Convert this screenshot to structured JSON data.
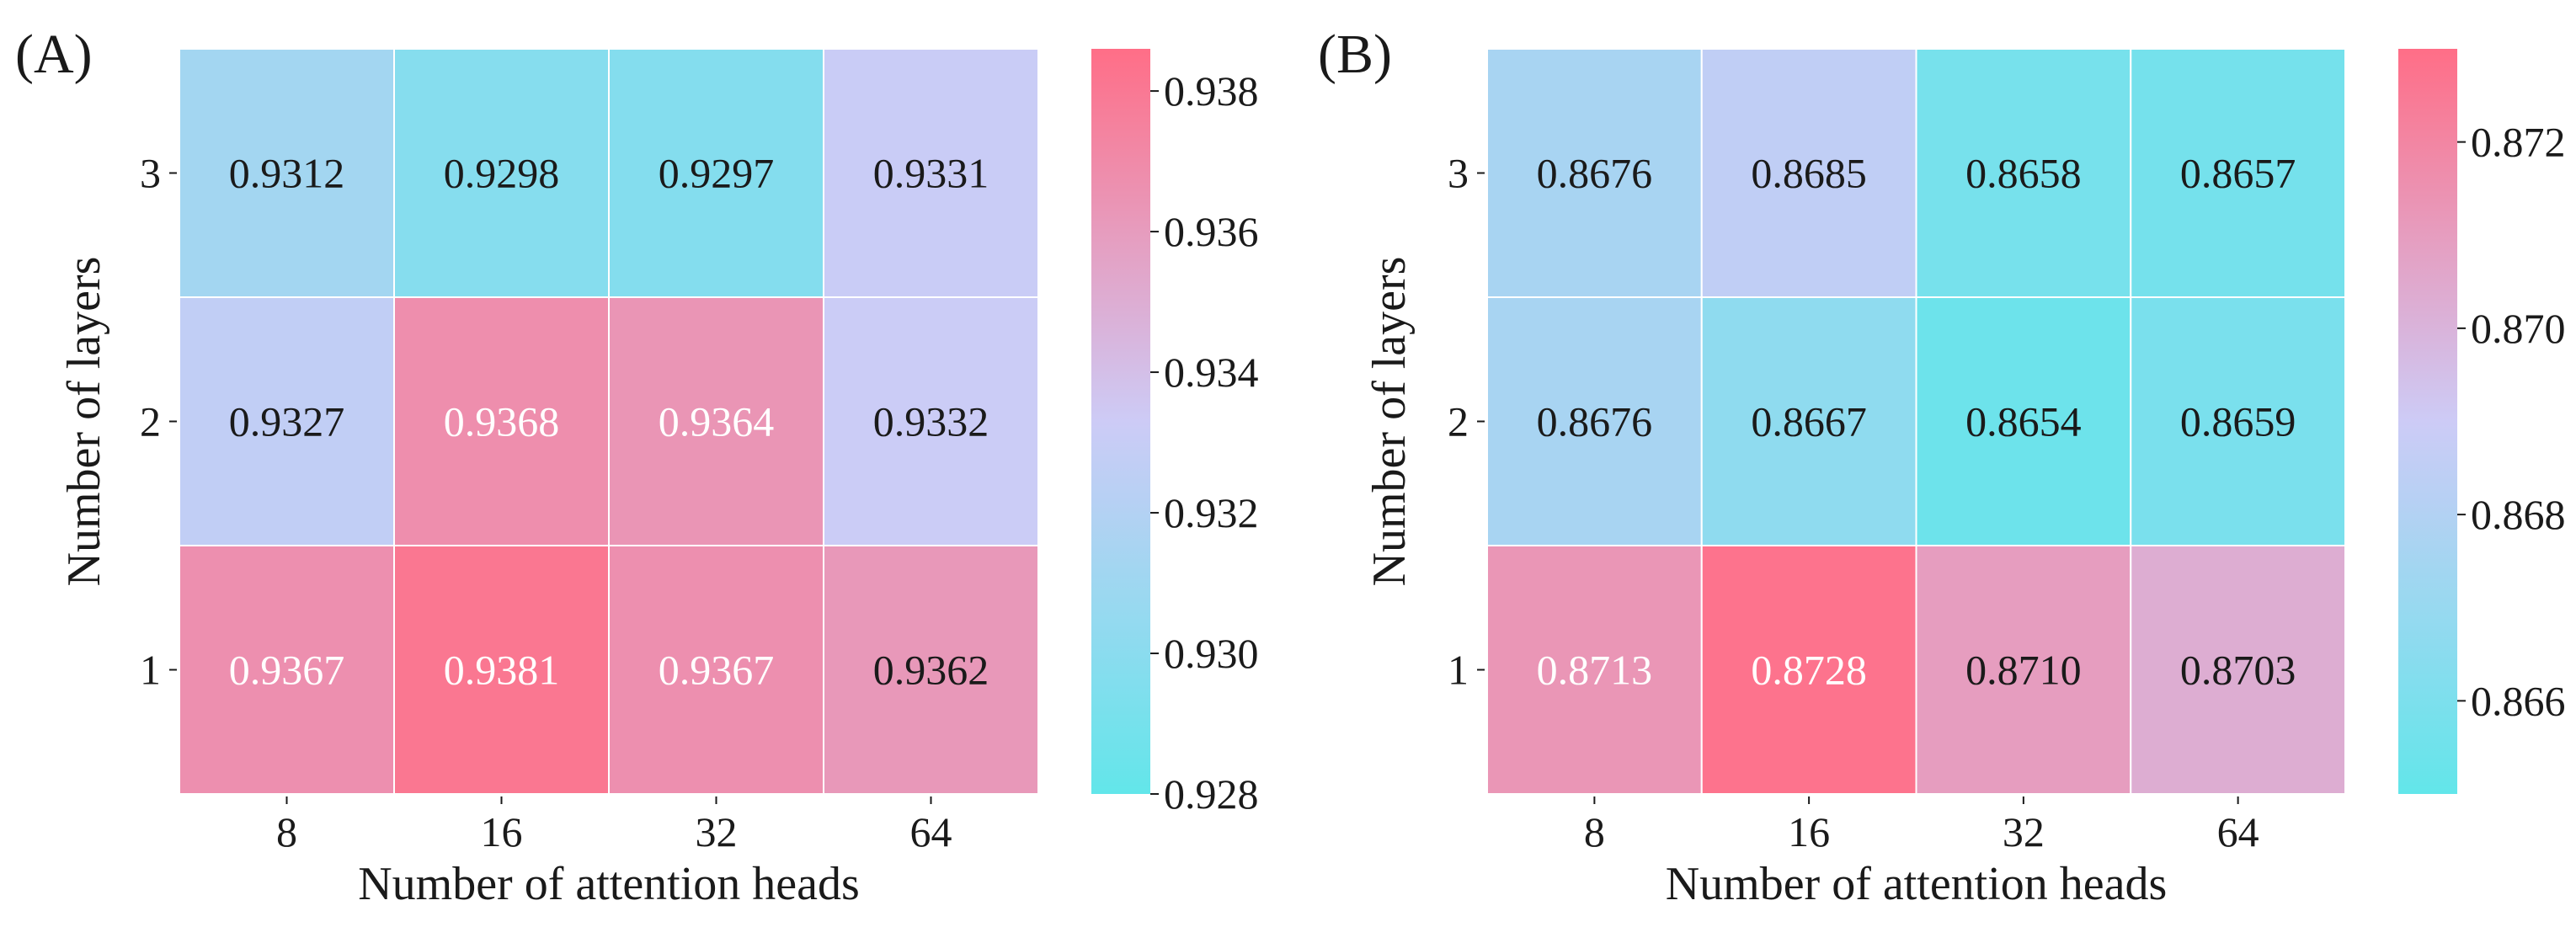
{
  "chart_data": [
    {
      "type": "heatmap",
      "panel_label": "(A)",
      "xlabel": "Number of attention heads",
      "ylabel": "Number of layers",
      "x_categories": [
        "8",
        "16",
        "32",
        "64"
      ],
      "y_categories": [
        "3",
        "2",
        "1"
      ],
      "values": [
        [
          "0.9312",
          "0.9298",
          "0.9297",
          "0.9331"
        ],
        [
          "0.9327",
          "0.9368",
          "0.9364",
          "0.9332"
        ],
        [
          "0.9367",
          "0.9381",
          "0.9367",
          "0.9362"
        ]
      ],
      "colorbar": {
        "vmin": 0.928,
        "vmax": 0.9386,
        "ticks": [
          "0.928",
          "0.930",
          "0.932",
          "0.934",
          "0.936",
          "0.938"
        ]
      }
    },
    {
      "type": "heatmap",
      "panel_label": "(B)",
      "xlabel": "Number of attention heads",
      "ylabel": "Number of layers",
      "x_categories": [
        "8",
        "16",
        "32",
        "64"
      ],
      "y_categories": [
        "3",
        "2",
        "1"
      ],
      "values": [
        [
          "0.8676",
          "0.8685",
          "0.8658",
          "0.8657"
        ],
        [
          "0.8676",
          "0.8667",
          "0.8654",
          "0.8659"
        ],
        [
          "0.8713",
          "0.8728",
          "0.8710",
          "0.8703"
        ]
      ],
      "colorbar": {
        "vmin": 0.865,
        "vmax": 0.873,
        "ticks": [
          "0.866",
          "0.868",
          "0.870",
          "0.872"
        ]
      }
    }
  ],
  "colormap": {
    "low": "#62E6EA",
    "mid": "#CDCBF6",
    "high": "#FF6E87"
  }
}
